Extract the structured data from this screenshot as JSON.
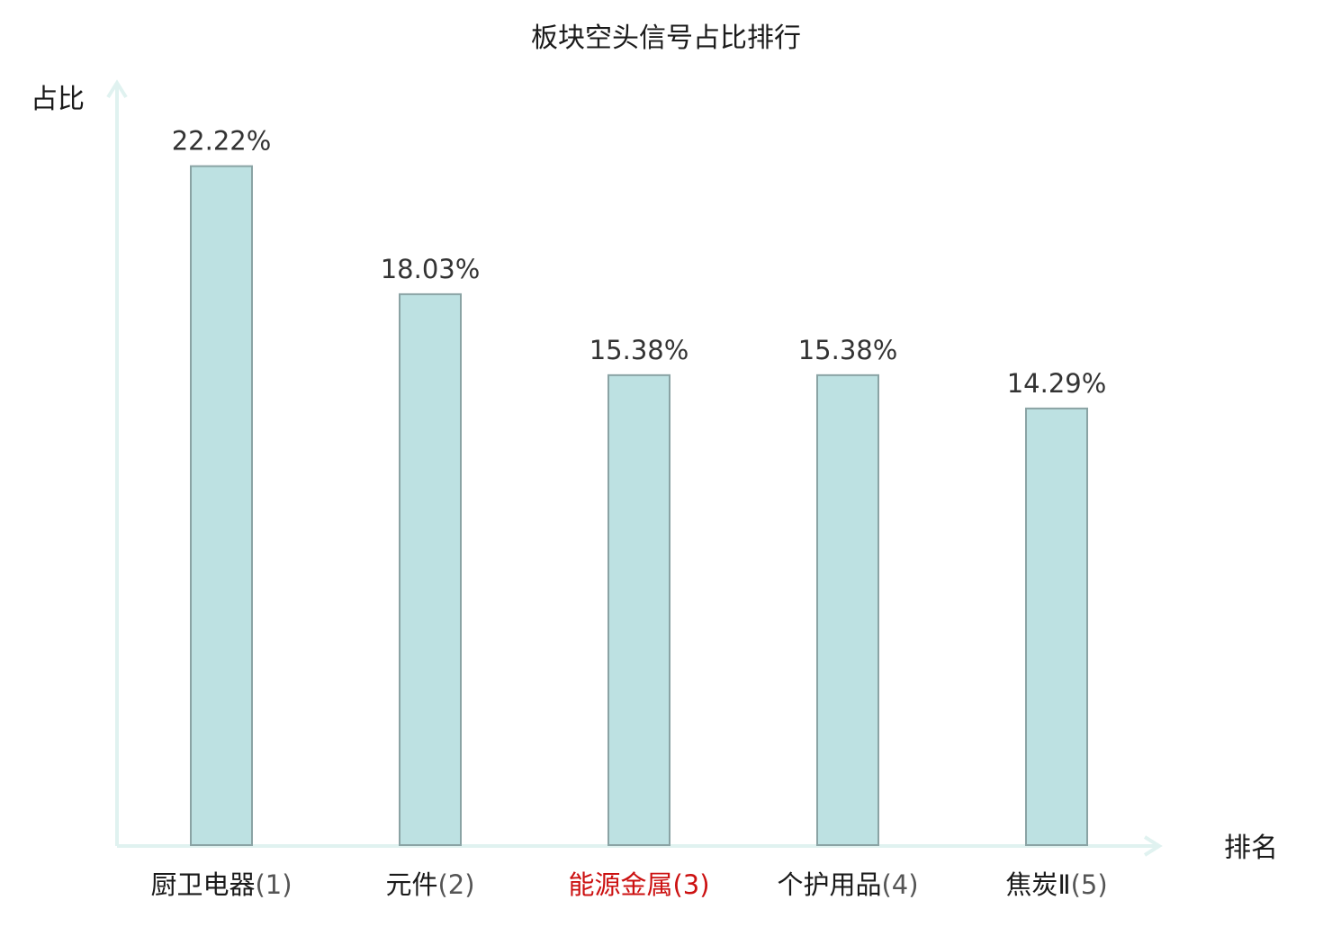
{
  "chart_data": {
    "type": "bar",
    "title": "板块空头信号占比排行",
    "xlabel": "排名",
    "ylabel": "占比",
    "categories": [
      "厨卫电器",
      "元件",
      "能源金属",
      "个护用品",
      "焦炭Ⅱ"
    ],
    "ranks": [
      "(1)",
      "(2)",
      "(3)",
      "(4)",
      "(5)"
    ],
    "values": [
      22.22,
      18.03,
      15.38,
      15.38,
      14.29
    ],
    "value_labels": [
      "22.22%",
      "18.03%",
      "15.38%",
      "15.38%",
      "14.29%"
    ],
    "highlight_index": 2,
    "ylim": [
      0,
      25
    ],
    "grid": false,
    "colors": {
      "bar_fill": "#bde1e2",
      "bar_stroke": "#8aa3a4",
      "axis": "#e0f2f0",
      "highlight": "#cc1111",
      "text": "#1a1a1a",
      "rank_text": "#555555"
    }
  }
}
